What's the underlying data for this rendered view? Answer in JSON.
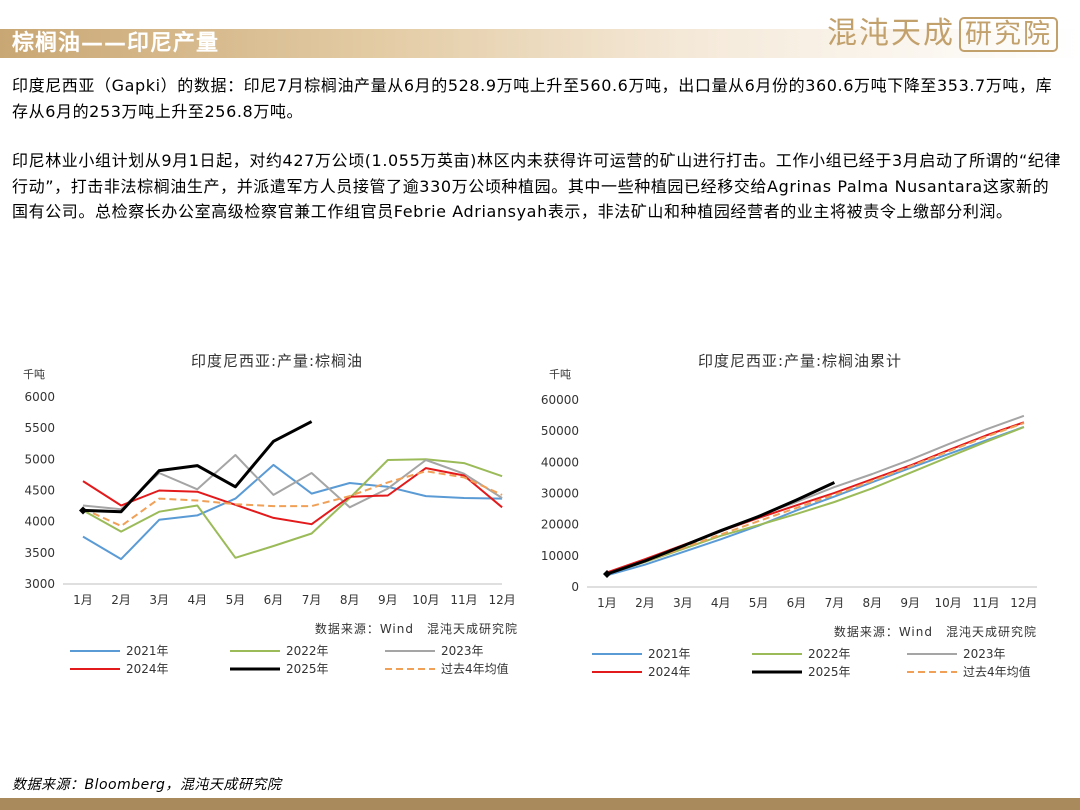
{
  "header": {
    "title": "棕榈油——印尼产量",
    "logo_text": "混沌天成",
    "logo_boxed": "研究院"
  },
  "paragraphs": [
    "印度尼西亚（Gapki）的数据：印尼7月棕榈油产量从6月的528.9万吨上升至560.6万吨，出口量从6月份的360.6万吨下降至353.7万吨，库存从6月的253万吨上升至256.8万吨。",
    "印尼林业小组计划从9月1日起，对约427万公顷(1.055万英亩)林区内未获得许可运营的矿山进行打击。工作小组已经于3月启动了所谓的“纪律行动”，打击非法棕榈油生产，并派遣军方人员接管了逾330万公顷种植园。其中一些种植园已经移交给Agrinas Palma Nusantara这家新的国有公司。总检察长办公室高级检察官兼工作组官员Febrie Adriansyah表示，非法矿山和种植园经营者的业主将被责令上缴部分利润。"
  ],
  "footer": {
    "source": "数据来源：Bloomberg，混沌天成研究院"
  },
  "chart_data": [
    {
      "type": "line",
      "title": "印度尼西亚:产量:棕榈油",
      "ylabel": "千吨",
      "source_note": "数据来源：Wind　混沌天成研究院",
      "categories": [
        "1月",
        "2月",
        "3月",
        "4月",
        "5月",
        "6月",
        "7月",
        "8月",
        "9月",
        "10月",
        "11月",
        "12月"
      ],
      "ylim": [
        3000,
        6000
      ],
      "yticks": [
        3000,
        3500,
        4000,
        4500,
        5000,
        5500,
        6000
      ],
      "grid": false,
      "legend_position": "bottom",
      "series": [
        {
          "name": "2021年",
          "color": "#5b9bd5",
          "style": "solid",
          "values": [
            3760,
            3400,
            4030,
            4100,
            4370,
            4910,
            4450,
            4620,
            4560,
            4410,
            4380,
            4370
          ]
        },
        {
          "name": "2022年",
          "color": "#9bbb59",
          "style": "solid",
          "values": [
            4180,
            3840,
            4160,
            4260,
            3420,
            3610,
            3810,
            4380,
            4990,
            5000,
            4940,
            4730
          ]
        },
        {
          "name": "2023年",
          "color": "#a5a5a5",
          "style": "solid",
          "values": [
            4260,
            4200,
            4780,
            4520,
            5070,
            4430,
            4780,
            4230,
            4530,
            4990,
            4770,
            4380
          ]
        },
        {
          "name": "2024年",
          "color": "#e31a1c",
          "style": "solid",
          "values": [
            4650,
            4260,
            4500,
            4480,
            4270,
            4060,
            3960,
            4400,
            4420,
            4860,
            4740,
            4230
          ]
        },
        {
          "name": "2025年",
          "color": "#000000",
          "style": "bold",
          "values": [
            4180,
            4160,
            4820,
            4900,
            4560,
            5289,
            5606,
            null,
            null,
            null,
            null,
            null
          ]
        },
        {
          "name": "过去4年均值",
          "color": "#f0a057",
          "style": "dashed",
          "values": [
            4210,
            3930,
            4370,
            4340,
            4280,
            4250,
            4250,
            4410,
            4630,
            4810,
            4710,
            4430
          ]
        }
      ]
    },
    {
      "type": "line",
      "title": "印度尼西亚:产量:棕榈油累计",
      "ylabel": "千吨",
      "source_note": "数据来源：Wind　混沌天成研究院",
      "categories": [
        "1月",
        "2月",
        "3月",
        "4月",
        "5月",
        "6月",
        "7月",
        "8月",
        "9月",
        "10月",
        "11月",
        "12月"
      ],
      "ylim": [
        0,
        60000
      ],
      "yticks": [
        0,
        10000,
        20000,
        30000,
        40000,
        50000,
        60000
      ],
      "grid": false,
      "legend_position": "bottom",
      "series": [
        {
          "name": "2021年",
          "color": "#5b9bd5",
          "style": "solid",
          "values": [
            3760,
            7160,
            11190,
            15290,
            19660,
            24570,
            29020,
            33640,
            38200,
            42610,
            46990,
            51360
          ]
        },
        {
          "name": "2022年",
          "color": "#9bbb59",
          "style": "solid",
          "values": [
            4180,
            8020,
            12180,
            16440,
            19860,
            23470,
            27280,
            31660,
            36650,
            41650,
            46590,
            51320
          ]
        },
        {
          "name": "2023年",
          "color": "#a5a5a5",
          "style": "solid",
          "values": [
            4260,
            8460,
            13240,
            17760,
            22830,
            27260,
            32040,
            36270,
            40800,
            45790,
            50560,
            54940
          ]
        },
        {
          "name": "2024年",
          "color": "#e31a1c",
          "style": "solid",
          "values": [
            4650,
            8910,
            13410,
            17890,
            22160,
            26220,
            30180,
            34580,
            39000,
            43860,
            48600,
            52830
          ]
        },
        {
          "name": "2025年",
          "color": "#000000",
          "style": "bold",
          "values": [
            4180,
            8340,
            13160,
            18060,
            22620,
            27909,
            33515,
            null,
            null,
            null,
            null,
            null
          ]
        },
        {
          "name": "过去4年均值",
          "color": "#f0a057",
          "style": "dashed",
          "values": [
            4210,
            8140,
            12510,
            16850,
            21130,
            25380,
            29630,
            34040,
            38660,
            43480,
            48190,
            52610
          ]
        }
      ]
    }
  ]
}
